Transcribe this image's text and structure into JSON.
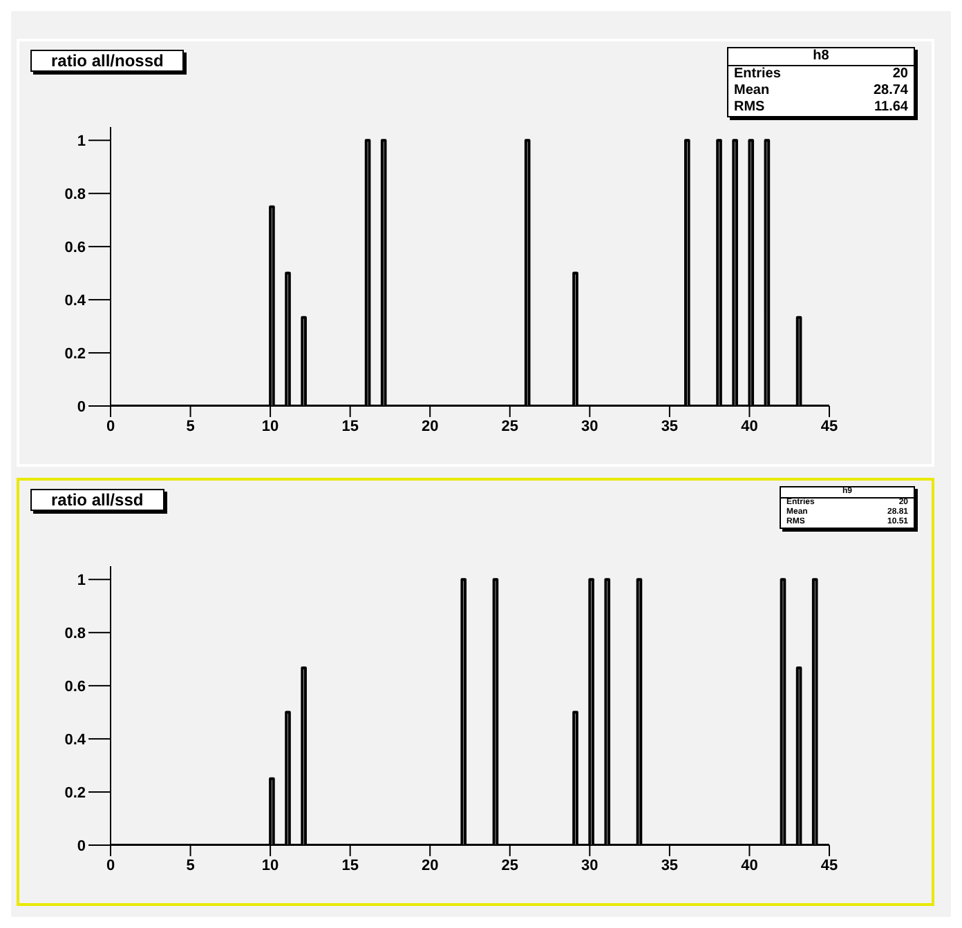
{
  "chart_data": [
    {
      "type": "histogram",
      "title": "ratio all/nossd",
      "bins": [
        0,
        10,
        10.2,
        11,
        11.2,
        12,
        12.2,
        16,
        16.2,
        17,
        17.2,
        26,
        26.2,
        29,
        29.2,
        36,
        36.2,
        38,
        38.2,
        39,
        39.2,
        40,
        40.2,
        41,
        41.2,
        43,
        43.2,
        45
      ],
      "values": [
        0,
        0.75,
        0,
        0.5,
        0,
        0.333,
        0,
        1,
        0,
        1,
        0,
        1,
        0,
        0.5,
        0,
        1,
        0,
        1,
        0,
        1,
        0,
        1,
        0,
        1,
        0,
        0.333,
        0
      ],
      "color": "#000000",
      "xlim": [
        0,
        45
      ],
      "xticks": [
        0,
        5,
        10,
        15,
        20,
        25,
        30,
        35,
        40,
        45
      ],
      "ylim": [
        0,
        1.05
      ],
      "yticks": [
        0,
        0.2,
        0.4,
        0.6,
        0.8,
        1
      ],
      "annotations": [
        "h8",
        "Entries",
        "20",
        "Mean",
        "28.74",
        "RMS",
        "11.64"
      ]
    },
    {
      "type": "histogram",
      "title": "ratio all/ssd",
      "bins": [
        0,
        10,
        10.2,
        11,
        11.2,
        12,
        12.2,
        22,
        22.2,
        24,
        24.2,
        29,
        29.2,
        30,
        30.2,
        31,
        31.2,
        33,
        33.2,
        42,
        42.2,
        43,
        43.2,
        44,
        44.2,
        45
      ],
      "values": [
        0,
        0.25,
        0,
        0.5,
        0,
        0.667,
        0,
        1,
        0,
        1,
        0,
        0.5,
        0,
        1,
        0,
        1,
        0,
        1,
        0,
        1,
        0,
        0.667,
        0,
        1,
        0
      ],
      "color": "#000000",
      "xlim": [
        0,
        45
      ],
      "xticks": [
        0,
        5,
        10,
        15,
        20,
        25,
        30,
        35,
        40,
        45
      ],
      "ylim": [
        0,
        1.05
      ],
      "yticks": [
        0,
        0.2,
        0.4,
        0.6,
        0.8,
        1
      ],
      "annotations": [
        "h9",
        "Entries",
        "20",
        "Mean",
        "28.81",
        "RMS",
        "10.51"
      ]
    }
  ]
}
